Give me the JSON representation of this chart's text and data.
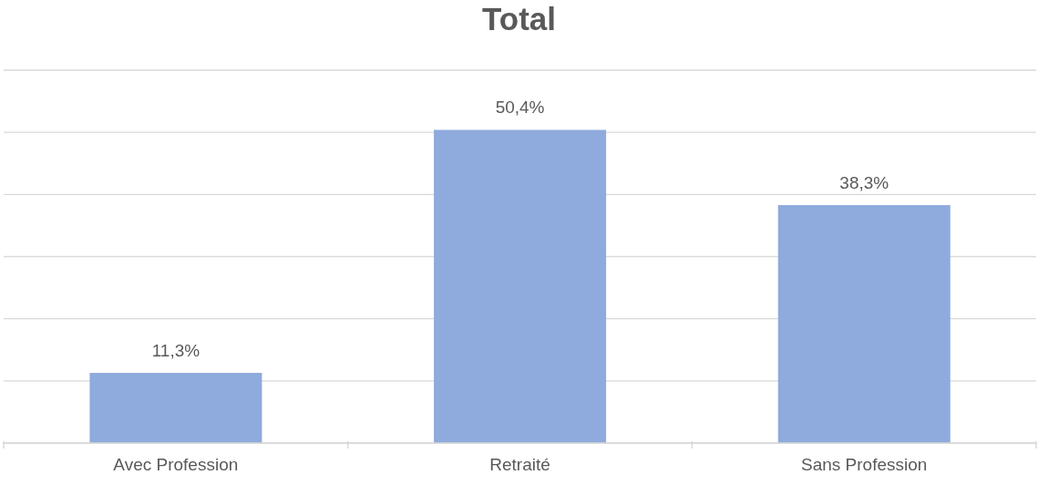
{
  "chart_data": {
    "type": "bar",
    "title": "Total",
    "categories": [
      "Avec Profession",
      "Retraité",
      "Sans Profession"
    ],
    "values": [
      11.3,
      50.4,
      38.3
    ],
    "color": "#8faadc",
    "value_labels": [
      "11,3%",
      "50,4%",
      "38,3%"
    ],
    "ylim": [
      0,
      60
    ],
    "yticks": [
      {
        "value": 0,
        "label": null
      },
      {
        "value": 10,
        "label": null
      },
      {
        "value": 20,
        "label": null
      },
      {
        "value": 30,
        "label": null
      },
      {
        "value": 40,
        "label": null
      },
      {
        "value": 50,
        "label": null
      },
      {
        "value": 60,
        "label": null
      }
    ],
    "grid": "y",
    "tick_labels": "x",
    "legend": false
  }
}
